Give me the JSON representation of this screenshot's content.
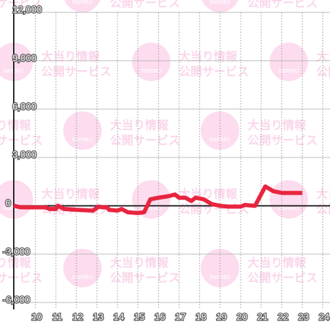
{
  "chart_data": {
    "type": "line",
    "watermark": [
      "大当り情報",
      "公開サービス",
      "PAPIMO"
    ],
    "x": [
      8.95,
      9.3,
      10.5,
      10.7,
      11,
      11.1,
      11.4,
      12,
      12.8,
      13.1,
      13.3,
      13.5,
      13.6,
      14,
      14.2,
      14.5,
      15,
      15.3,
      15.6,
      16,
      16.5,
      16.8,
      17,
      17.3,
      17.6,
      17.8,
      18.2,
      18.6,
      19,
      19.4,
      20,
      20.2,
      20.7,
      21.2,
      21.6,
      22,
      23
    ],
    "series": [
      {
        "color": "#e8253f",
        "values": [
          0,
          -100,
          -100,
          -200,
          -200,
          0,
          -200,
          -250,
          -300,
          -50,
          -100,
          -100,
          -250,
          -300,
          -200,
          -400,
          -450,
          -400,
          400,
          500,
          600,
          700,
          500,
          500,
          300,
          500,
          400,
          100,
          0,
          -50,
          -50,
          50,
          0,
          1200,
          900,
          800,
          800
        ]
      }
    ],
    "xlim": [
      8.95,
      24.35
    ],
    "xticks": [
      10,
      11,
      12,
      13,
      14,
      15,
      16,
      17,
      18,
      19,
      20,
      21,
      22,
      23,
      24
    ],
    "ylim": [
      -6000,
      12000
    ],
    "yticks": [
      {
        "value": -6000,
        "label": "-6,000"
      },
      {
        "value": -3000,
        "label": "-3,000"
      },
      0,
      {
        "value": 3000,
        "label": "3,000"
      },
      {
        "value": 6000,
        "label": "6,000"
      },
      {
        "value": 9000,
        "label": "9,000"
      },
      {
        "value": 12000,
        "label": "12,000"
      }
    ],
    "grid": true
  }
}
